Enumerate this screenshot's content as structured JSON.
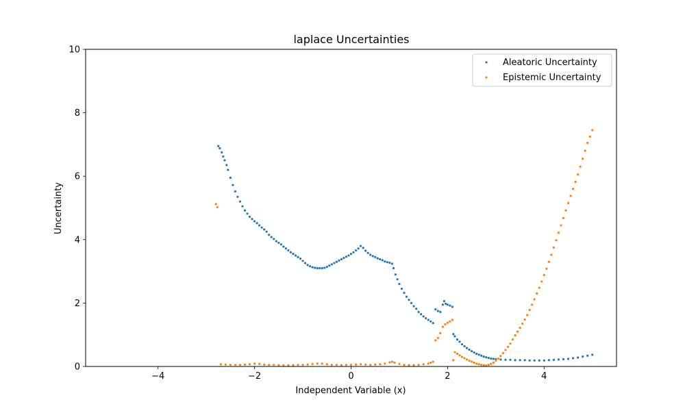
{
  "chart_data": {
    "type": "scatter",
    "title": "laplace Uncertainties",
    "xlabel": "Independent Variable (x)",
    "ylabel": "Uncertainty",
    "xlim": [
      -5.5,
      5.5
    ],
    "ylim": [
      0,
      10
    ],
    "xticks": [
      -4,
      -2,
      0,
      2,
      4
    ],
    "yticks": [
      0,
      2,
      4,
      6,
      8,
      10
    ],
    "grid": false,
    "legend_position": "top-right",
    "series": [
      {
        "name": "Aleatoric Uncertainty",
        "color": "#1f77b4",
        "points": [
          [
            -2.75,
            6.95
          ],
          [
            -2.72,
            6.88
          ],
          [
            -2.68,
            6.75
          ],
          [
            -2.65,
            6.62
          ],
          [
            -2.62,
            6.5
          ],
          [
            -2.58,
            6.35
          ],
          [
            -2.55,
            6.2
          ],
          [
            -2.5,
            5.95
          ],
          [
            -2.45,
            5.72
          ],
          [
            -2.4,
            5.52
          ],
          [
            -2.35,
            5.35
          ],
          [
            -2.3,
            5.2
          ],
          [
            -2.25,
            5.05
          ],
          [
            -2.2,
            4.92
          ],
          [
            -2.15,
            4.82
          ],
          [
            -2.1,
            4.72
          ],
          [
            -2.05,
            4.65
          ],
          [
            -2.0,
            4.58
          ],
          [
            -1.95,
            4.52
          ],
          [
            -1.9,
            4.45
          ],
          [
            -1.85,
            4.38
          ],
          [
            -1.8,
            4.32
          ],
          [
            -1.75,
            4.25
          ],
          [
            -1.7,
            4.15
          ],
          [
            -1.65,
            4.08
          ],
          [
            -1.6,
            4.02
          ],
          [
            -1.55,
            3.95
          ],
          [
            -1.5,
            3.9
          ],
          [
            -1.45,
            3.85
          ],
          [
            -1.4,
            3.78
          ],
          [
            -1.35,
            3.72
          ],
          [
            -1.3,
            3.66
          ],
          [
            -1.25,
            3.6
          ],
          [
            -1.2,
            3.55
          ],
          [
            -1.15,
            3.5
          ],
          [
            -1.1,
            3.45
          ],
          [
            -1.05,
            3.4
          ],
          [
            -1.0,
            3.33
          ],
          [
            -0.95,
            3.26
          ],
          [
            -0.9,
            3.2
          ],
          [
            -0.85,
            3.16
          ],
          [
            -0.8,
            3.13
          ],
          [
            -0.75,
            3.11
          ],
          [
            -0.7,
            3.1
          ],
          [
            -0.65,
            3.1
          ],
          [
            -0.6,
            3.1
          ],
          [
            -0.55,
            3.11
          ],
          [
            -0.5,
            3.14
          ],
          [
            -0.45,
            3.18
          ],
          [
            -0.4,
            3.22
          ],
          [
            -0.35,
            3.26
          ],
          [
            -0.3,
            3.3
          ],
          [
            -0.25,
            3.34
          ],
          [
            -0.2,
            3.38
          ],
          [
            -0.15,
            3.42
          ],
          [
            -0.1,
            3.46
          ],
          [
            -0.05,
            3.5
          ],
          [
            0.0,
            3.55
          ],
          [
            0.05,
            3.6
          ],
          [
            0.1,
            3.66
          ],
          [
            0.15,
            3.72
          ],
          [
            0.2,
            3.8
          ],
          [
            0.25,
            3.74
          ],
          [
            0.3,
            3.65
          ],
          [
            0.35,
            3.58
          ],
          [
            0.4,
            3.52
          ],
          [
            0.45,
            3.48
          ],
          [
            0.5,
            3.45
          ],
          [
            0.55,
            3.41
          ],
          [
            0.6,
            3.38
          ],
          [
            0.65,
            3.35
          ],
          [
            0.7,
            3.31
          ],
          [
            0.75,
            3.29
          ],
          [
            0.8,
            3.27
          ],
          [
            0.85,
            3.24
          ],
          [
            0.88,
            3.1
          ],
          [
            0.92,
            2.9
          ],
          [
            0.96,
            2.75
          ],
          [
            1.0,
            2.6
          ],
          [
            1.05,
            2.45
          ],
          [
            1.1,
            2.32
          ],
          [
            1.15,
            2.2
          ],
          [
            1.2,
            2.1
          ],
          [
            1.25,
            2.0
          ],
          [
            1.3,
            1.9
          ],
          [
            1.35,
            1.82
          ],
          [
            1.4,
            1.72
          ],
          [
            1.45,
            1.65
          ],
          [
            1.5,
            1.58
          ],
          [
            1.55,
            1.52
          ],
          [
            1.6,
            1.47
          ],
          [
            1.65,
            1.42
          ],
          [
            1.7,
            1.37
          ],
          [
            1.75,
            1.8
          ],
          [
            1.8,
            1.75
          ],
          [
            1.85,
            1.72
          ],
          [
            1.9,
            1.95
          ],
          [
            1.93,
            2.06
          ],
          [
            1.96,
            1.98
          ],
          [
            2.0,
            1.95
          ],
          [
            2.05,
            1.92
          ],
          [
            2.1,
            1.88
          ],
          [
            2.12,
            1.02
          ],
          [
            2.15,
            0.95
          ],
          [
            2.2,
            0.85
          ],
          [
            2.25,
            0.78
          ],
          [
            2.3,
            0.7
          ],
          [
            2.35,
            0.64
          ],
          [
            2.4,
            0.58
          ],
          [
            2.45,
            0.53
          ],
          [
            2.5,
            0.48
          ],
          [
            2.55,
            0.44
          ],
          [
            2.6,
            0.4
          ],
          [
            2.65,
            0.37
          ],
          [
            2.7,
            0.34
          ],
          [
            2.75,
            0.31
          ],
          [
            2.8,
            0.29
          ],
          [
            2.85,
            0.27
          ],
          [
            2.9,
            0.25
          ],
          [
            2.95,
            0.24
          ],
          [
            3.0,
            0.23
          ],
          [
            3.1,
            0.22
          ],
          [
            3.2,
            0.21
          ],
          [
            3.3,
            0.21
          ],
          [
            3.4,
            0.2
          ],
          [
            3.5,
            0.2
          ],
          [
            3.6,
            0.2
          ],
          [
            3.7,
            0.19
          ],
          [
            3.8,
            0.19
          ],
          [
            3.9,
            0.19
          ],
          [
            4.0,
            0.19
          ],
          [
            4.1,
            0.2
          ],
          [
            4.2,
            0.21
          ],
          [
            4.3,
            0.22
          ],
          [
            4.4,
            0.23
          ],
          [
            4.5,
            0.24
          ],
          [
            4.6,
            0.26
          ],
          [
            4.7,
            0.28
          ],
          [
            4.8,
            0.31
          ],
          [
            4.9,
            0.34
          ],
          [
            5.0,
            0.37
          ]
        ]
      },
      {
        "name": "Epistemic Uncertainty",
        "color": "#ff7f0e",
        "points": [
          [
            -2.8,
            5.12
          ],
          [
            -2.77,
            5.02
          ],
          [
            -2.7,
            0.07
          ],
          [
            -2.6,
            0.06
          ],
          [
            -2.5,
            0.05
          ],
          [
            -2.4,
            0.05
          ],
          [
            -2.3,
            0.05
          ],
          [
            -2.2,
            0.06
          ],
          [
            -2.1,
            0.07
          ],
          [
            -2.0,
            0.09
          ],
          [
            -1.9,
            0.08
          ],
          [
            -1.8,
            0.06
          ],
          [
            -1.7,
            0.05
          ],
          [
            -1.6,
            0.05
          ],
          [
            -1.5,
            0.04
          ],
          [
            -1.4,
            0.04
          ],
          [
            -1.3,
            0.04
          ],
          [
            -1.2,
            0.04
          ],
          [
            -1.1,
            0.05
          ],
          [
            -1.0,
            0.05
          ],
          [
            -0.9,
            0.06
          ],
          [
            -0.8,
            0.08
          ],
          [
            -0.7,
            0.09
          ],
          [
            -0.6,
            0.09
          ],
          [
            -0.5,
            0.07
          ],
          [
            -0.4,
            0.05
          ],
          [
            -0.3,
            0.05
          ],
          [
            -0.2,
            0.04
          ],
          [
            -0.1,
            0.05
          ],
          [
            0.0,
            0.05
          ],
          [
            0.1,
            0.06
          ],
          [
            0.2,
            0.07
          ],
          [
            0.3,
            0.06
          ],
          [
            0.4,
            0.05
          ],
          [
            0.5,
            0.06
          ],
          [
            0.6,
            0.07
          ],
          [
            0.7,
            0.09
          ],
          [
            0.8,
            0.13
          ],
          [
            0.85,
            0.15
          ],
          [
            0.9,
            0.12
          ],
          [
            1.0,
            0.08
          ],
          [
            1.1,
            0.05
          ],
          [
            1.2,
            0.04
          ],
          [
            1.3,
            0.04
          ],
          [
            1.4,
            0.05
          ],
          [
            1.5,
            0.07
          ],
          [
            1.6,
            0.09
          ],
          [
            1.65,
            0.12
          ],
          [
            1.7,
            0.15
          ],
          [
            1.75,
            0.82
          ],
          [
            1.8,
            0.9
          ],
          [
            1.85,
            1.05
          ],
          [
            1.9,
            1.25
          ],
          [
            1.95,
            1.33
          ],
          [
            2.0,
            1.38
          ],
          [
            2.05,
            1.42
          ],
          [
            2.1,
            1.47
          ],
          [
            2.12,
            0.2
          ],
          [
            2.15,
            0.45
          ],
          [
            2.2,
            0.4
          ],
          [
            2.25,
            0.35
          ],
          [
            2.3,
            0.3
          ],
          [
            2.35,
            0.26
          ],
          [
            2.4,
            0.22
          ],
          [
            2.45,
            0.18
          ],
          [
            2.5,
            0.15
          ],
          [
            2.55,
            0.12
          ],
          [
            2.6,
            0.09
          ],
          [
            2.65,
            0.07
          ],
          [
            2.7,
            0.05
          ],
          [
            2.75,
            0.04
          ],
          [
            2.8,
            0.03
          ],
          [
            2.85,
            0.05
          ],
          [
            2.9,
            0.08
          ],
          [
            2.95,
            0.12
          ],
          [
            3.0,
            0.18
          ],
          [
            3.05,
            0.25
          ],
          [
            3.1,
            0.33
          ],
          [
            3.15,
            0.42
          ],
          [
            3.2,
            0.52
          ],
          [
            3.25,
            0.62
          ],
          [
            3.3,
            0.72
          ],
          [
            3.35,
            0.85
          ],
          [
            3.4,
            0.98
          ],
          [
            3.45,
            1.1
          ],
          [
            3.5,
            1.22
          ],
          [
            3.55,
            1.35
          ],
          [
            3.6,
            1.48
          ],
          [
            3.65,
            1.62
          ],
          [
            3.7,
            1.78
          ],
          [
            3.75,
            1.95
          ],
          [
            3.8,
            2.12
          ],
          [
            3.85,
            2.3
          ],
          [
            3.9,
            2.48
          ],
          [
            3.95,
            2.68
          ],
          [
            4.0,
            2.88
          ],
          [
            4.05,
            3.08
          ],
          [
            4.1,
            3.3
          ],
          [
            4.15,
            3.52
          ],
          [
            4.2,
            3.75
          ],
          [
            4.25,
            3.98
          ],
          [
            4.3,
            4.22
          ],
          [
            4.35,
            4.45
          ],
          [
            4.4,
            4.68
          ],
          [
            4.45,
            4.92
          ],
          [
            4.5,
            5.15
          ],
          [
            4.55,
            5.38
          ],
          [
            4.6,
            5.6
          ],
          [
            4.65,
            5.82
          ],
          [
            4.7,
            6.05
          ],
          [
            4.75,
            6.3
          ],
          [
            4.8,
            6.55
          ],
          [
            4.85,
            6.8
          ],
          [
            4.9,
            7.05
          ],
          [
            4.95,
            7.25
          ],
          [
            5.0,
            7.45
          ]
        ]
      }
    ]
  }
}
